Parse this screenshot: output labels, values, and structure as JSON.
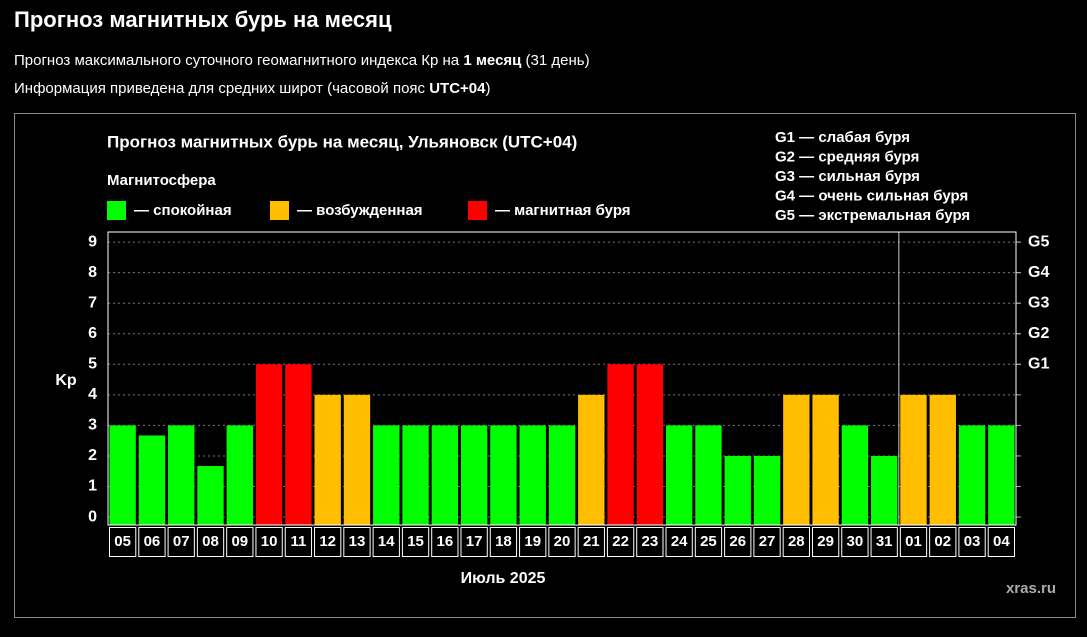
{
  "page": {
    "title": "Прогноз магнитных бурь на месяц",
    "line1": {
      "before": "Прогноз максимального суточного геомагнитного индекса Кр на ",
      "bold": "1 месяц",
      "after": " (31 день)"
    },
    "line2": {
      "before": "Информация приведена для средних широт (часовой пояс ",
      "bold": "UTC+04",
      "after": ")"
    },
    "watermark": "xras.ru"
  },
  "chart_data": {
    "type": "bar",
    "title": "Прогноз магнитных бурь на месяц, Ульяновск (UTC+04)",
    "legend_title": "Магнитосфера",
    "legend": [
      {
        "name": "— спокойная",
        "color": "#00ff00"
      },
      {
        "name": "— возбужденная",
        "color": "#ffbf00"
      },
      {
        "name": "— магнитная буря",
        "color": "#ff0000"
      }
    ],
    "annotations": [
      "G1 — слабая буря",
      "G2 — средняя буря",
      "G3 — сильная буря",
      "G4 — очень сильная буря",
      "G5 — экстремальная буря"
    ],
    "ylabel": "Kp",
    "xlabel": "Июль 2025",
    "categories": [
      "05",
      "06",
      "07",
      "08",
      "09",
      "10",
      "11",
      "12",
      "13",
      "14",
      "15",
      "16",
      "17",
      "18",
      "19",
      "20",
      "21",
      "22",
      "23",
      "24",
      "25",
      "26",
      "27",
      "28",
      "29",
      "30",
      "31",
      "01",
      "02",
      "03",
      "04"
    ],
    "values": [
      3,
      2.67,
      3,
      1.67,
      3,
      5,
      5,
      4,
      4,
      3,
      3,
      3,
      3,
      3,
      3,
      3,
      4,
      5,
      5,
      3,
      3,
      2,
      2,
      4,
      4,
      3,
      2,
      4,
      4,
      3,
      3
    ],
    "colors": [
      "#00ff00",
      "#00ff00",
      "#00ff00",
      "#00ff00",
      "#00ff00",
      "#ff0000",
      "#ff0000",
      "#ffbf00",
      "#ffbf00",
      "#00ff00",
      "#00ff00",
      "#00ff00",
      "#00ff00",
      "#00ff00",
      "#00ff00",
      "#00ff00",
      "#ffbf00",
      "#ff0000",
      "#ff0000",
      "#00ff00",
      "#00ff00",
      "#00ff00",
      "#00ff00",
      "#ffbf00",
      "#ffbf00",
      "#00ff00",
      "#00ff00",
      "#ffbf00",
      "#ffbf00",
      "#00ff00",
      "#00ff00"
    ],
    "ylim": [
      -0.26,
      9.33
    ],
    "yticks": [
      0,
      1,
      2,
      3,
      4,
      5,
      6,
      7,
      8,
      9
    ],
    "y2lim": [
      -0.26,
      9.33
    ],
    "y2ticks": [
      {
        "value": 5,
        "label": "G1"
      },
      {
        "value": 6,
        "label": "G2"
      },
      {
        "value": 7,
        "label": "G3"
      },
      {
        "value": 8,
        "label": "G4"
      },
      {
        "value": 9,
        "label": "G5"
      }
    ],
    "grid": true
  }
}
